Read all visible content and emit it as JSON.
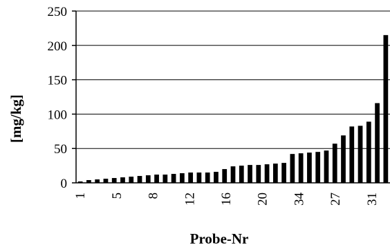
{
  "chart_data": {
    "type": "bar",
    "title": "",
    "xlabel": "Probe-Nr",
    "ylabel": "[mg/kg]",
    "ylim": [
      0,
      250
    ],
    "yticks": [
      "0",
      "50",
      "100",
      "150",
      "200",
      "250"
    ],
    "grid": "horizontal",
    "legend": "none",
    "bar_color": "#000000",
    "x_tick_labels": [
      "1",
      "5",
      "8",
      "12",
      "16",
      "20",
      "34",
      "27",
      "31"
    ],
    "values": [
      2,
      4,
      5,
      6,
      7,
      8,
      9,
      10,
      11,
      12,
      12,
      13,
      14,
      15,
      15,
      15,
      16,
      20,
      24,
      25,
      26,
      26,
      27,
      28,
      29,
      42,
      43,
      44,
      45,
      47,
      57,
      69,
      82,
      83,
      89,
      116,
      215
    ]
  }
}
